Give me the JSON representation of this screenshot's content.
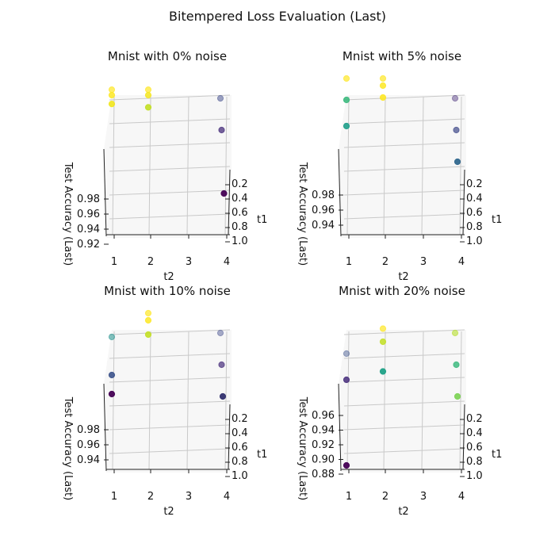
{
  "suptitle": "Bitempered Loss Evaluation (Last)",
  "colormap": "viridis",
  "chart_data": [
    {
      "type": "scatter3d",
      "title": "Mnist with 0% noise",
      "xlabel": "t2",
      "ylabel": "t1",
      "zlabel": "Test Accuracy (Last)",
      "x_ticks": [
        "1",
        "2",
        "3",
        "4"
      ],
      "y_ticks": [
        "0.2",
        "0.4",
        "0.6",
        "0.8",
        "1.0"
      ],
      "z_ticks": [
        "0.92",
        "0.94",
        "0.96",
        "0.98"
      ],
      "zlim": [
        0.92,
        0.99
      ],
      "points": [
        {
          "t2": 1,
          "t1": 0.2,
          "acc": 0.996,
          "color": "#fde725",
          "alpha": 0.7
        },
        {
          "t2": 2,
          "t1": 0.2,
          "acc": 0.996,
          "color": "#fde725",
          "alpha": 0.7
        },
        {
          "t2": 1,
          "t1": 0.4,
          "acc": 0.997,
          "color": "#fde725",
          "alpha": 0.85
        },
        {
          "t2": 2,
          "t1": 0.4,
          "acc": 0.997,
          "color": "#f5e61e",
          "alpha": 0.85
        },
        {
          "t2": 1,
          "t1": 0.6,
          "acc": 0.996,
          "color": "#f1e51d",
          "alpha": 0.9
        },
        {
          "t2": 2,
          "t1": 0.6,
          "acc": 0.994,
          "color": "#c2df23",
          "alpha": 0.9
        },
        {
          "t2": 4,
          "t1": 0.2,
          "acc": 0.93,
          "color": "#3e4989",
          "alpha": 0.5
        },
        {
          "t2": 4,
          "t1": 0.4,
          "acc": 0.93,
          "color": "#472d7b",
          "alpha": 0.75
        },
        {
          "t2": 4,
          "t1": 0.8,
          "acc": 0.925,
          "color": "#440154",
          "alpha": 0.95
        }
      ]
    },
    {
      "type": "scatter3d",
      "title": "Mnist with 5% noise",
      "xlabel": "t2",
      "ylabel": "t1",
      "zlabel": "Test Accuracy (Last)",
      "x_ticks": [
        "1",
        "2",
        "3",
        "4"
      ],
      "y_ticks": [
        "0.2",
        "0.4",
        "0.6",
        "0.8",
        "1.0"
      ],
      "z_ticks": [
        "0.94",
        "0.96",
        "0.98"
      ],
      "zlim": [
        0.94,
        0.99
      ],
      "points": [
        {
          "t2": 1,
          "t1": 0.2,
          "acc": 0.999,
          "color": "#fde725",
          "alpha": 0.7
        },
        {
          "t2": 2,
          "t1": 0.2,
          "acc": 0.999,
          "color": "#fde725",
          "alpha": 0.7
        },
        {
          "t2": 1,
          "t1": 0.4,
          "acc": 0.993,
          "color": "#35b779",
          "alpha": 0.85
        },
        {
          "t2": 2,
          "t1": 0.4,
          "acc": 0.999,
          "color": "#fde725",
          "alpha": 0.85
        },
        {
          "t2": 1,
          "t1": 0.6,
          "acc": 0.985,
          "color": "#1f9e89",
          "alpha": 0.9
        },
        {
          "t2": 2,
          "t1": 0.6,
          "acc": 0.997,
          "color": "#fde725",
          "alpha": 0.9
        },
        {
          "t2": 4,
          "t1": 0.2,
          "acc": 0.948,
          "color": "#472d7b",
          "alpha": 0.45
        },
        {
          "t2": 4,
          "t1": 0.4,
          "acc": 0.948,
          "color": "#3e4989",
          "alpha": 0.7
        },
        {
          "t2": 4,
          "t1": 0.6,
          "acc": 0.946,
          "color": "#31688e",
          "alpha": 0.95
        }
      ]
    },
    {
      "type": "scatter3d",
      "title": "Mnist with 10% noise",
      "xlabel": "t2",
      "ylabel": "t1",
      "zlabel": "Test Accuracy (Last)",
      "x_ticks": [
        "1",
        "2",
        "3",
        "4"
      ],
      "y_ticks": [
        "0.2",
        "0.4",
        "0.6",
        "0.8",
        "1.0"
      ],
      "z_ticks": [
        "0.94",
        "0.96",
        "0.98"
      ],
      "zlim": [
        0.94,
        0.99
      ],
      "points": [
        {
          "t2": 2,
          "t1": 0.2,
          "acc": 0.999,
          "color": "#fde725",
          "alpha": 0.7
        },
        {
          "t2": 1,
          "t1": 0.4,
          "acc": 0.992,
          "color": "#21918c",
          "alpha": 0.55
        },
        {
          "t2": 2,
          "t1": 0.4,
          "acc": 0.999,
          "color": "#fde725",
          "alpha": 0.85
        },
        {
          "t2": 2,
          "t1": 0.6,
          "acc": 0.996,
          "color": "#c2df23",
          "alpha": 0.9
        },
        {
          "t2": 1,
          "t1": 0.6,
          "acc": 0.979,
          "color": "#3b528b",
          "alpha": 0.9
        },
        {
          "t2": 1,
          "t1": 0.8,
          "acc": 0.974,
          "color": "#440154",
          "alpha": 0.95
        },
        {
          "t2": 4,
          "t1": 0.2,
          "acc": 0.948,
          "color": "#3e4989",
          "alpha": 0.45
        },
        {
          "t2": 4,
          "t1": 0.4,
          "acc": 0.945,
          "color": "#472d7b",
          "alpha": 0.7
        },
        {
          "t2": 4,
          "t1": 0.6,
          "acc": 0.944,
          "color": "#31306e",
          "alpha": 0.95
        }
      ]
    },
    {
      "type": "scatter3d",
      "title": "Mnist with 20% noise",
      "xlabel": "t2",
      "ylabel": "t1",
      "zlabel": "Test Accuracy (Last)",
      "x_ticks": [
        "1",
        "2",
        "3",
        "4"
      ],
      "y_ticks": [
        "0.2",
        "0.4",
        "0.6",
        "0.8",
        "1.0"
      ],
      "z_ticks": [
        "0.88",
        "0.90",
        "0.92",
        "0.94",
        "0.96"
      ],
      "zlim": [
        0.88,
        0.98
      ],
      "points": [
        {
          "t2": 2,
          "t1": 0.2,
          "acc": 0.985,
          "color": "#fde725",
          "alpha": 0.7
        },
        {
          "t2": 4,
          "t1": 0.2,
          "acc": 0.977,
          "color": "#b5de2b",
          "alpha": 0.6
        },
        {
          "t2": 2,
          "t1": 0.4,
          "acc": 0.98,
          "color": "#c2df23",
          "alpha": 0.85
        },
        {
          "t2": 4,
          "t1": 0.4,
          "acc": 0.973,
          "color": "#35b779",
          "alpha": 0.8
        },
        {
          "t2": 1,
          "t1": 0.4,
          "acc": 0.97,
          "color": "#3b528b",
          "alpha": 0.45
        },
        {
          "t2": 4,
          "t1": 0.6,
          "acc": 0.968,
          "color": "#7ad151",
          "alpha": 0.9
        },
        {
          "t2": 2,
          "t1": 0.6,
          "acc": 0.961,
          "color": "#1fa187",
          "alpha": 0.95
        },
        {
          "t2": 1,
          "t1": 0.6,
          "acc": 0.954,
          "color": "#472d7b",
          "alpha": 0.85
        },
        {
          "t2": 1,
          "t1": 0.8,
          "acc": 0.888,
          "color": "#440154",
          "alpha": 0.95
        }
      ]
    }
  ]
}
